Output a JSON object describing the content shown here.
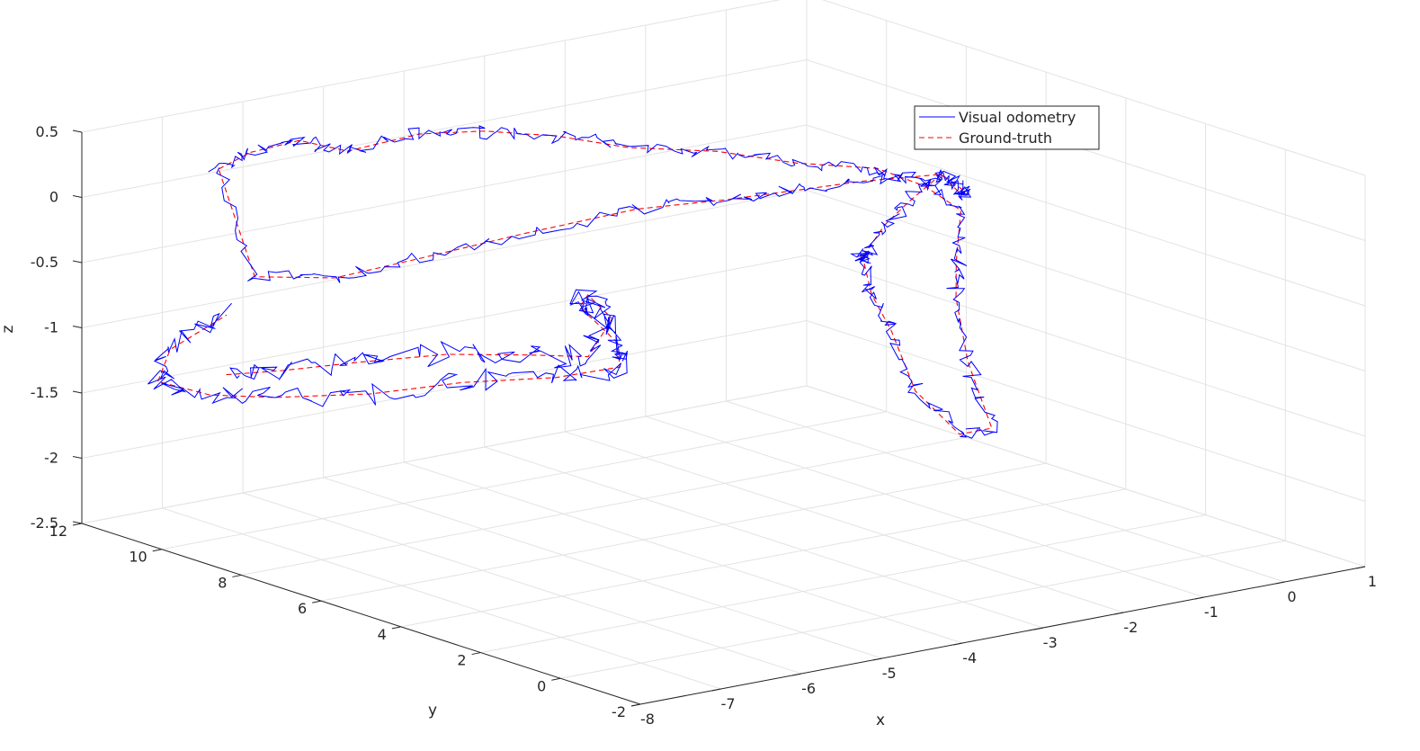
{
  "chart_data": {
    "type": "line",
    "projection": "3d",
    "title": "",
    "xlabel": "x",
    "ylabel": "y",
    "zlabel": "z",
    "xlim": [
      -8,
      1
    ],
    "ylim": [
      -2,
      12
    ],
    "zlim": [
      -2.5,
      0.5
    ],
    "x_ticks": [
      "-8",
      "-7",
      "-6",
      "-5",
      "-4",
      "-3",
      "-2",
      "-1",
      "0",
      "1"
    ],
    "y_ticks": [
      "-2",
      "0",
      "2",
      "4",
      "6",
      "8",
      "10",
      "12"
    ],
    "z_ticks": [
      "-2.5",
      "-2",
      "-1.5",
      "-1",
      "-0.5",
      "0",
      "0.5"
    ],
    "grid": true,
    "legend_position": "upper-right",
    "series": [
      {
        "name": "Visual odometry",
        "color": "#0000ff",
        "line_style": "solid"
      },
      {
        "name": "Ground-truth",
        "color": "#ff0000",
        "line_style": "dashed"
      }
    ],
    "trajectory": [
      [
        -6.4,
        11.8,
        0.05
      ],
      [
        -5.9,
        12.0,
        0.1
      ],
      [
        -5.3,
        12.0,
        0.12
      ],
      [
        -4.8,
        11.8,
        0.0
      ],
      [
        -4.2,
        11.2,
        0.12
      ],
      [
        -3.5,
        11.0,
        0.08
      ],
      [
        -2.8,
        10.6,
        0.0
      ],
      [
        -2.2,
        10.0,
        -0.1
      ],
      [
        -1.6,
        9.0,
        -0.1
      ],
      [
        -1.1,
        8.0,
        -0.15
      ],
      [
        -0.6,
        7.0,
        -0.15
      ],
      [
        -0.5,
        6.0,
        -0.2
      ],
      [
        -0.8,
        4.5,
        -0.2
      ],
      [
        -1.6,
        3.0,
        -0.35
      ],
      [
        -2.0,
        2.2,
        -0.5
      ],
      [
        -2.2,
        1.5,
        -0.9
      ],
      [
        -2.2,
        0.9,
        -1.35
      ],
      [
        -2.6,
        0.9,
        -1.35
      ],
      [
        -3.0,
        1.2,
        -1.0
      ],
      [
        -3.0,
        1.8,
        -0.6
      ],
      [
        -2.9,
        2.5,
        -0.4
      ],
      [
        -2.5,
        3.5,
        -0.3
      ],
      [
        -2.2,
        4.2,
        -0.35
      ],
      [
        -2.0,
        4.5,
        -0.4
      ],
      [
        -1.6,
        4.8,
        -0.25
      ],
      [
        -1.0,
        5.4,
        -0.2
      ],
      [
        -0.4,
        5.8,
        -0.1
      ],
      [
        0.0,
        6.0,
        -0.3
      ],
      [
        0.05,
        6.2,
        -0.35
      ],
      [
        -0.4,
        5.8,
        -0.1
      ],
      [
        -1.0,
        6.5,
        -0.15
      ],
      [
        -1.6,
        7.0,
        -0.2
      ],
      [
        -2.2,
        7.5,
        -0.25
      ],
      [
        -3.0,
        8.2,
        -0.3
      ],
      [
        -4.0,
        9.0,
        -0.45
      ],
      [
        -5.0,
        9.7,
        -0.6
      ],
      [
        -5.6,
        10.5,
        -0.75
      ],
      [
        -6.2,
        11.3,
        -0.75
      ],
      [
        -6.4,
        11.8,
        0.05
      ]
    ],
    "trajectory_lower": [
      [
        -6.9,
        10.6,
        -1.35
      ],
      [
        -6.2,
        10.6,
        -1.4
      ],
      [
        -5.2,
        10.6,
        -1.45
      ],
      [
        -4.2,
        10.5,
        -1.5
      ],
      [
        -3.4,
        10.0,
        -1.55
      ],
      [
        -3.0,
        9.4,
        -1.55
      ],
      [
        -3.0,
        8.8,
        -1.2
      ],
      [
        -3.4,
        8.6,
        -0.95
      ],
      [
        -3.6,
        8.4,
        -1.0
      ],
      [
        -3.2,
        8.3,
        -1.3
      ],
      [
        -3.0,
        8.6,
        -1.55
      ],
      [
        -3.6,
        9.0,
        -1.6
      ],
      [
        -4.6,
        9.3,
        -1.55
      ],
      [
        -5.6,
        9.6,
        -1.55
      ],
      [
        -6.6,
        10.0,
        -1.5
      ],
      [
        -7.2,
        10.4,
        -1.45
      ],
      [
        -7.6,
        10.9,
        -1.35
      ],
      [
        -7.2,
        11.4,
        -1.2
      ],
      [
        -6.4,
        11.6,
        -1.05
      ]
    ]
  },
  "legend": {
    "vo_label": "Visual odometry",
    "gt_label": "Ground-truth"
  },
  "axes": {
    "x_label": "x",
    "y_label": "y",
    "z_label": "z"
  }
}
